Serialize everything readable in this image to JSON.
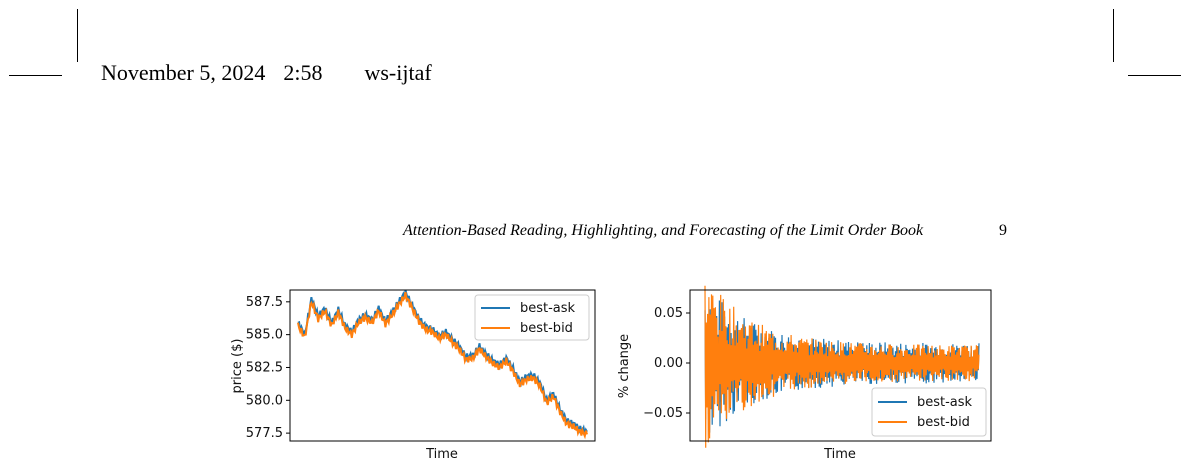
{
  "header": {
    "date": "November 5, 2024",
    "time": "2:58",
    "journal": "ws-ijtaf"
  },
  "running_title": "Attention-Based Reading, Highlighting, and Forecasting of the Limit Order Book",
  "page_number": "9",
  "chart_data": [
    {
      "type": "line",
      "xlabel": "Time",
      "ylabel": "price ($)",
      "ylim": [
        576.9,
        588.4
      ],
      "yticks": [
        "577.5",
        "580.0",
        "582.5",
        "585.0",
        "587.5"
      ],
      "ytick_values": [
        577.5,
        580.0,
        582.5,
        585.0,
        587.5
      ],
      "x_tick_labels_shown": false,
      "legend_position": "upper right",
      "series": [
        {
          "name": "best-ask",
          "color": "#1f77b4",
          "values": [
            585.9,
            585.0,
            587.7,
            586.4,
            587.0,
            585.9,
            586.9,
            585.7,
            585.2,
            586.1,
            586.5,
            586.1,
            587.0,
            586.0,
            586.7,
            587.5,
            588.2,
            587.2,
            586.2,
            585.6,
            585.4,
            584.9,
            585.2,
            584.6,
            584.1,
            583.3,
            583.4,
            584.1,
            583.5,
            583.0,
            582.7,
            583.2,
            582.4,
            581.4,
            581.8,
            581.9,
            581.3,
            580.0,
            580.5,
            579.3,
            578.4,
            578.2,
            577.8,
            577.6
          ]
        },
        {
          "name": "best-bid",
          "color": "#ff7f0e",
          "values": [
            585.7,
            584.8,
            587.5,
            586.2,
            586.8,
            585.7,
            586.7,
            585.5,
            585.0,
            585.9,
            586.3,
            585.9,
            586.8,
            585.8,
            586.5,
            587.3,
            588.0,
            587.0,
            586.0,
            585.4,
            585.2,
            584.7,
            585.0,
            584.4,
            583.9,
            583.1,
            583.2,
            583.9,
            583.3,
            582.8,
            582.5,
            583.0,
            582.2,
            581.2,
            581.6,
            581.7,
            581.1,
            579.8,
            580.3,
            579.1,
            578.2,
            578.0,
            577.6,
            577.4
          ]
        }
      ]
    },
    {
      "type": "line",
      "xlabel": "Time",
      "ylabel": "% change",
      "ylim": [
        -0.078,
        0.073
      ],
      "yticks": [
        "−0.05",
        "0.00",
        "0.05"
      ],
      "ytick_values": [
        -0.05,
        0.0,
        0.05
      ],
      "x_tick_labels_shown": false,
      "legend_position": "lower right",
      "series": [
        {
          "name": "best-ask",
          "color": "#1f77b4",
          "peak_abs": 0.062,
          "tail_abs": 0.02
        },
        {
          "name": "best-bid",
          "color": "#ff7f0e",
          "peak_abs": 0.072,
          "tail_abs": 0.018
        }
      ]
    }
  ]
}
